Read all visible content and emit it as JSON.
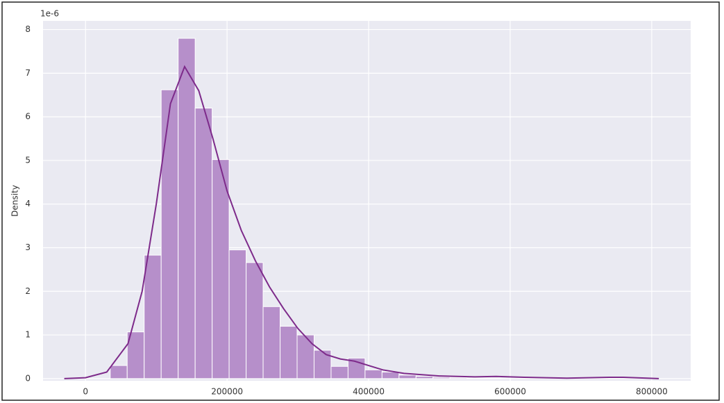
{
  "chart_data": {
    "type": "histogram",
    "bins": [
      34900,
      58903,
      82907,
      106910,
      130913,
      154917,
      178920,
      202923,
      226927,
      250930,
      274933,
      298937,
      322940,
      346943,
      370947,
      394950,
      418953,
      442957,
      466960,
      490963,
      514967,
      538970,
      562973,
      586977,
      610980,
      634983,
      658987,
      682990,
      706993,
      730997,
      755000
    ],
    "values": [
      0.3,
      1.07,
      2.83,
      6.62,
      7.8,
      6.2,
      5.02,
      2.95,
      2.66,
      1.65,
      1.2,
      1.0,
      0.65,
      0.28,
      0.47,
      0.2,
      0.15,
      0.08,
      0.05,
      0.03,
      0.02,
      0.01,
      0.01,
      0,
      0.01,
      0,
      0,
      0,
      0.01,
      0.01
    ],
    "color": "#b68fca",
    "kde": {
      "x": [
        -30000,
        0,
        30000,
        60000,
        80000,
        100000,
        120000,
        140000,
        160000,
        180000,
        200000,
        220000,
        240000,
        260000,
        280000,
        300000,
        320000,
        340000,
        360000,
        380000,
        400000,
        420000,
        450000,
        500000,
        550000,
        580000,
        620000,
        680000,
        740000,
        760000,
        810000
      ],
      "y": [
        0,
        0.02,
        0.15,
        0.8,
        2.0,
        4.0,
        6.3,
        7.15,
        6.6,
        5.5,
        4.3,
        3.4,
        2.7,
        2.1,
        1.6,
        1.15,
        0.8,
        0.55,
        0.45,
        0.4,
        0.3,
        0.2,
        0.12,
        0.06,
        0.04,
        0.05,
        0.03,
        0.01,
        0.03,
        0.03,
        0
      ],
      "color": "#7d2a8a"
    },
    "xlim": [
      -60000,
      855000
    ],
    "xticks": [
      0,
      200000,
      400000,
      600000,
      800000
    ],
    "ylim": [
      -0.05,
      8.2
    ],
    "yticks": [
      0,
      1,
      2,
      3,
      4,
      5,
      6,
      7,
      8
    ],
    "ylabel": "Density",
    "offset_label": "1e-6",
    "grid": true,
    "background": "#eaeaf2"
  }
}
